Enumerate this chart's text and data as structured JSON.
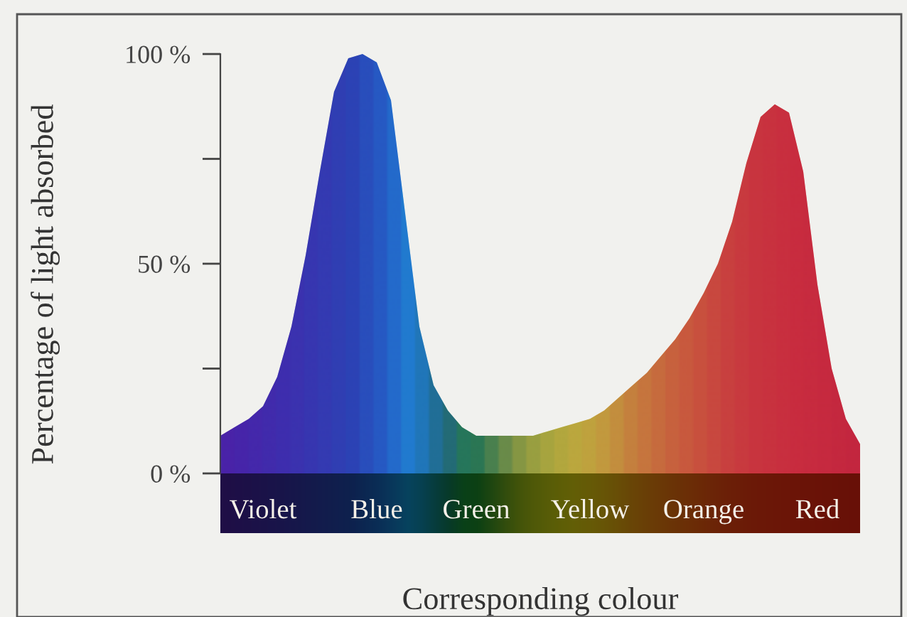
{
  "chart_data": {
    "type": "area",
    "xlabel": "Corresponding colour",
    "ylabel": "Percentage of light absorbed",
    "categories": [
      null,
      null,
      null,
      "Violet",
      null,
      null,
      null,
      null,
      null,
      null,
      null,
      "Blue",
      null,
      null,
      null,
      null,
      null,
      null,
      "Green",
      null,
      null,
      null,
      null,
      null,
      null,
      null,
      "Yellow",
      null,
      null,
      null,
      null,
      null,
      null,
      null,
      "Orange",
      null,
      null,
      null,
      null,
      null,
      null,
      null,
      "Red",
      null,
      null,
      null
    ],
    "values": [
      9,
      11,
      13,
      16,
      23,
      35,
      52,
      72,
      91,
      99,
      100,
      98,
      89,
      62,
      35,
      21,
      15,
      11,
      9,
      9,
      9,
      9,
      9,
      10,
      11,
      12,
      13,
      15,
      18,
      21,
      24,
      28,
      32,
      37,
      43,
      50,
      60,
      74,
      85,
      88,
      86,
      72,
      45,
      25,
      13,
      7
    ],
    "colors": [
      "#4a23a8",
      "#4626aa",
      "#422aac",
      "#3e2eae",
      "#3a32b0",
      "#3538b2",
      "#303eb4",
      "#2b44b6",
      "#264ab8",
      "#2050ba",
      "#1c60c4",
      "#1870ce",
      "#1488da",
      "#10a0e0",
      "#0f9ac0",
      "#108f90",
      "#138a60",
      "#179a3a",
      "#1f9a30",
      "#4aa828",
      "#78b820",
      "#a0c818",
      "#bcd414",
      "#d0dc12",
      "#e0e010",
      "#ece010",
      "#f2d810",
      "#f6cc10",
      "#f8bc10",
      "#faa810",
      "#fc9810",
      "#fd8a10",
      "#fe7c10",
      "#ff7010",
      "#ff6410",
      "#ff5812",
      "#ff4c12",
      "#ff4412",
      "#ff3c12",
      "#ff3812",
      "#ff3412",
      "#ff3012",
      "#fe2e12",
      "#fc2c12",
      "#fa2a12",
      "#f82812"
    ],
    "ylim": [
      0,
      100
    ],
    "yticks": [
      {
        "value": 0,
        "label": "0 %"
      },
      {
        "value": 25,
        "label": null
      },
      {
        "value": 50,
        "label": "50 %"
      },
      {
        "value": 75,
        "label": null
      },
      {
        "value": 100,
        "label": "100 %"
      }
    ],
    "grid": false,
    "legend": false
  }
}
